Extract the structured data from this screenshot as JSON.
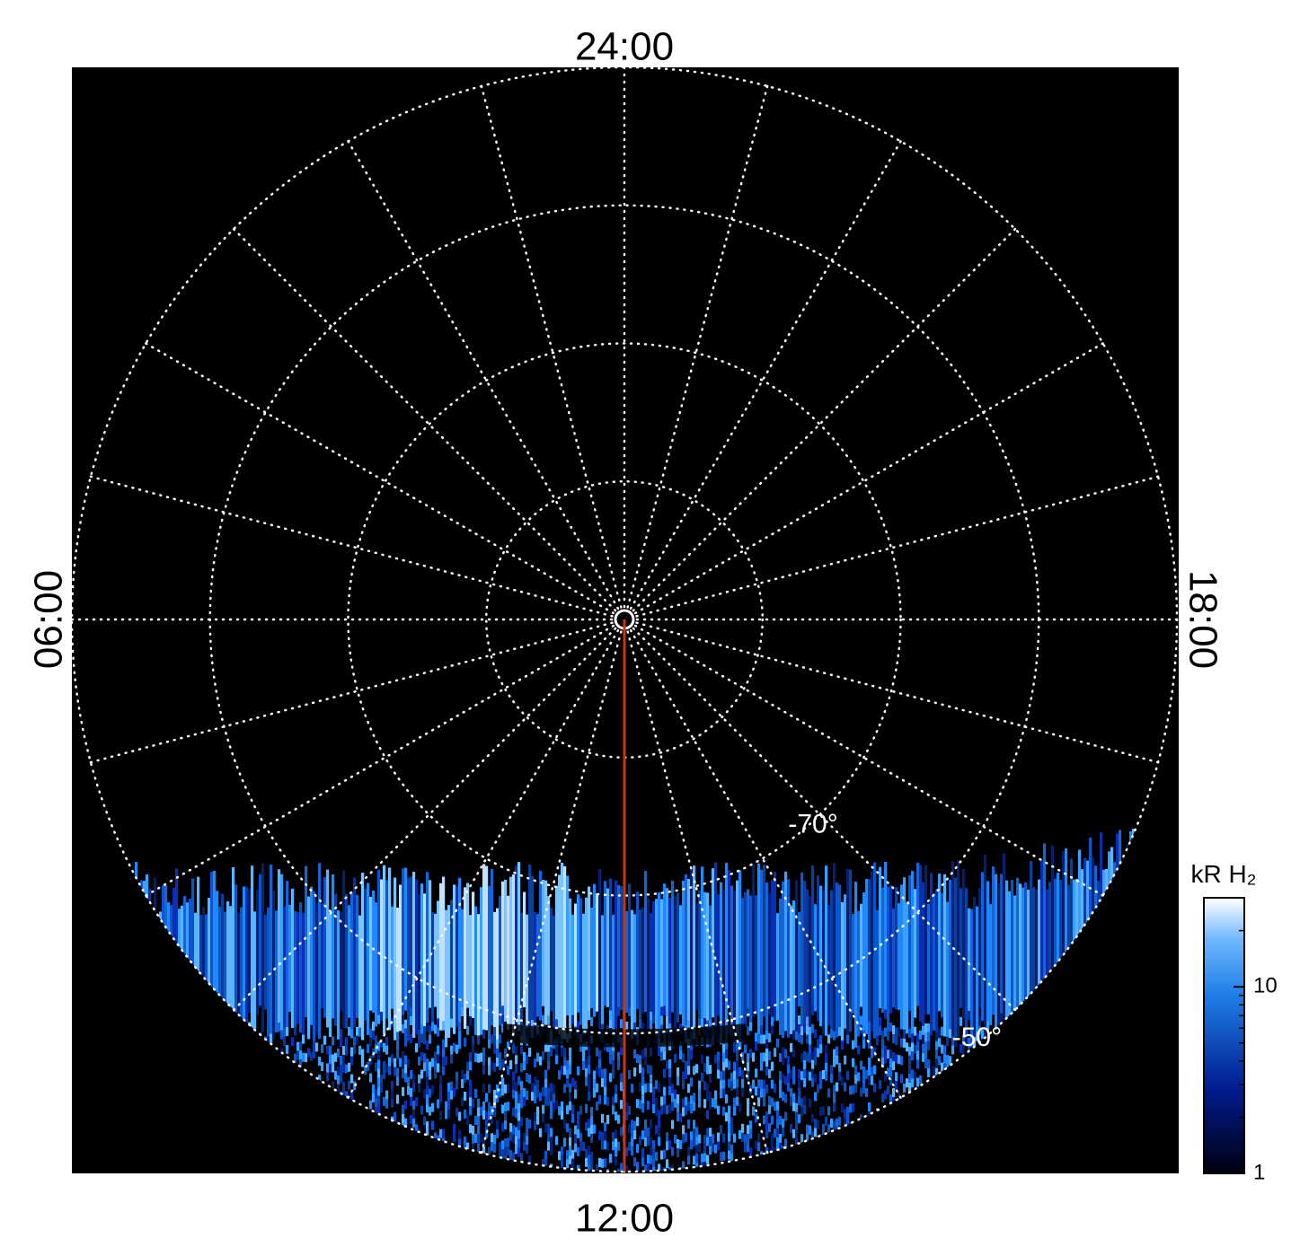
{
  "chart_data": {
    "type": "polar",
    "lt_labels": [
      "24:00",
      "06:00",
      "12:00",
      "18:00"
    ],
    "rlim": [
      -90,
      -50
    ],
    "lat_labels": [
      {
        "value": -70,
        "label": "-70°"
      },
      {
        "value": -50,
        "label": "-50°"
      }
    ],
    "meridian_color": "#cc3311",
    "colorbar": {
      "label": "kR H₂",
      "lim": [
        1,
        30
      ],
      "log": true,
      "ticks": [
        1,
        10
      ]
    }
  }
}
